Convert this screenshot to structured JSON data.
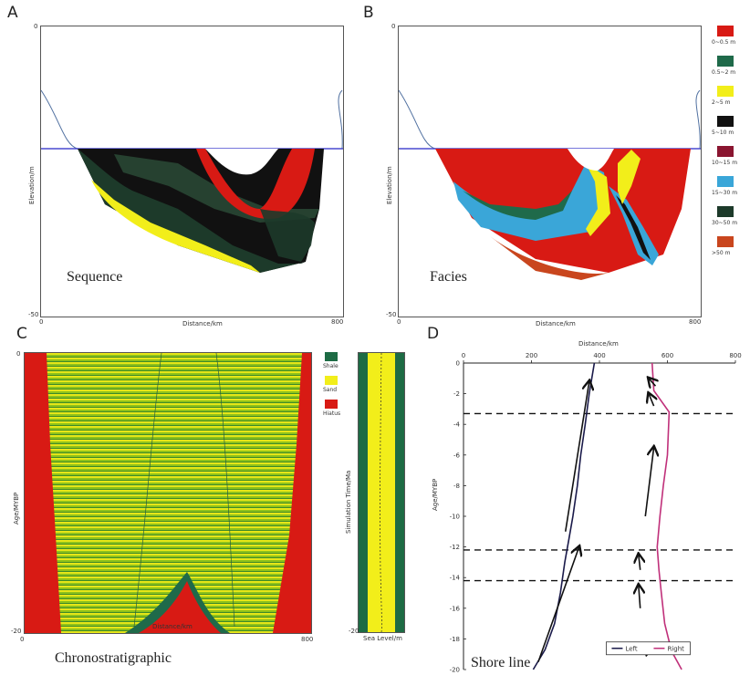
{
  "panels": {
    "A": {
      "letter": "A",
      "label": "Sequence",
      "xlabel": "Distance/km",
      "ylabel": "Elevation/m",
      "ticks": {
        "ytop": "0",
        "ybottom": "-50",
        "xleft": "0",
        "xright": "800"
      }
    },
    "B": {
      "letter": "B",
      "label": "Facies",
      "xlabel": "Distance/km",
      "ylabel": "Elevation/m",
      "ticks": {
        "ytop": "0",
        "ybottom": "-50",
        "xleft": "0",
        "xright": "800"
      }
    },
    "C": {
      "letter": "C",
      "label": "Chronostratigraphic",
      "xlabel": "Distance/km",
      "ylabel": "Age/MYBP",
      "side_xlabel": "Sea Level/m",
      "side_ylabel": "Simulation Time/Ma",
      "ticks": {
        "ytop": "0",
        "ybottom": "-20",
        "xleft": "0",
        "xright": "800",
        "sidebottom": "-20"
      }
    },
    "D": {
      "letter": "D",
      "label": "Shore line",
      "xlabel": "Distance/km",
      "ylabel": "Age/MYBP"
    }
  },
  "facies_legend": [
    {
      "label": "0~0.5 m",
      "color": "#d81a14"
    },
    {
      "label": "0.5~2 m",
      "color": "#1f6a4a"
    },
    {
      "label": "2~5 m",
      "color": "#f2ee1a"
    },
    {
      "label": "5~10 m",
      "color": "#111111"
    },
    {
      "label": "10~15 m",
      "color": "#8a1530"
    },
    {
      "label": "15~30 m",
      "color": "#3aa6d8"
    },
    {
      "label": "30~50 m",
      "color": "#1d3a2a"
    },
    {
      "label": ">50 m",
      "color": "#c9461e"
    }
  ],
  "chrono_legend": [
    {
      "label": "Shale",
      "color": "#1d6b44"
    },
    {
      "label": "Sand",
      "color": "#f2ee1a"
    },
    {
      "label": "Hiatus",
      "color": "#d81a14"
    }
  ],
  "chart_data": [
    {
      "type": "line",
      "xlabel": "Distance/km",
      "ylabel": "Age/MYBP",
      "xlim": [
        0,
        800
      ],
      "ylim": [
        -20,
        0
      ],
      "xticks": [
        "0",
        "200",
        "400",
        "600",
        "800"
      ],
      "yticks": [
        "0",
        "-2",
        "-4",
        "-6",
        "-8",
        "-10",
        "-12",
        "-14",
        "-16",
        "-18",
        "-20"
      ],
      "series": [
        {
          "name": "Left",
          "color": "#1a1a4a",
          "x": [
            385,
            370,
            358,
            345,
            335,
            322,
            310,
            298,
            285,
            268,
            240,
            205
          ],
          "y": [
            0,
            -2,
            -4,
            -6,
            -8,
            -10,
            -11.5,
            -13,
            -15,
            -17,
            -18.7,
            -20
          ]
        },
        {
          "name": "Right",
          "color": "#c0307a",
          "x": [
            555,
            560,
            605,
            600,
            588,
            578,
            570,
            575,
            582,
            592,
            612,
            642
          ],
          "y": [
            0,
            -1.8,
            -3.2,
            -6,
            -8,
            -10,
            -12,
            -13.5,
            -15,
            -17,
            -18.8,
            -20
          ]
        }
      ],
      "reference_lines_y": [
        -3.3,
        -12.2,
        -14.2
      ]
    }
  ]
}
